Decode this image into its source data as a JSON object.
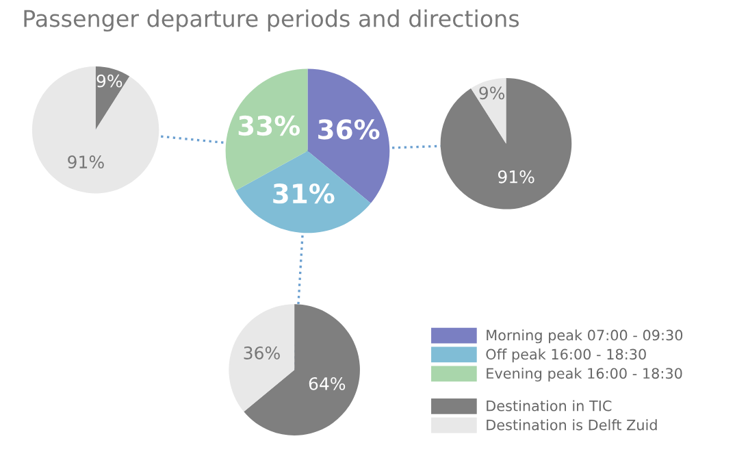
{
  "chart_data": [
    {
      "type": "pie",
      "title": "Passenger departure periods and directions",
      "categories": [
        "Morning peak 07:00 - 09:30",
        "Off peak 16:00 - 18:30",
        "Evening peak 16:00 - 18:30"
      ],
      "values": [
        36,
        31,
        33
      ],
      "colors": [
        "#7a7fc2",
        "#80bdd6",
        "#a9d6ab"
      ],
      "value_labels": [
        "36%",
        "31%",
        "33%"
      ],
      "legend": "bottom right"
    },
    {
      "type": "pie",
      "categories": [
        "Destination in TIC",
        "Destination is Delft Zuid"
      ],
      "values": [
        9,
        91
      ],
      "colors": [
        "#7f7f7f",
        "#e8e8e8"
      ],
      "value_labels": [
        "9%",
        "91%"
      ],
      "legend": "bottom right"
    },
    {
      "type": "pie",
      "values": [
        91,
        9
      ],
      "colors": [
        "#7f7f7f",
        "#e8e8e8"
      ],
      "value_labels": [
        "91%",
        "9%"
      ]
    },
    {
      "type": "pie",
      "values": [
        64,
        36
      ],
      "colors": [
        "#7f7f7f",
        "#e8e8e8"
      ],
      "value_labels": [
        "64%",
        "36%"
      ]
    }
  ]
}
